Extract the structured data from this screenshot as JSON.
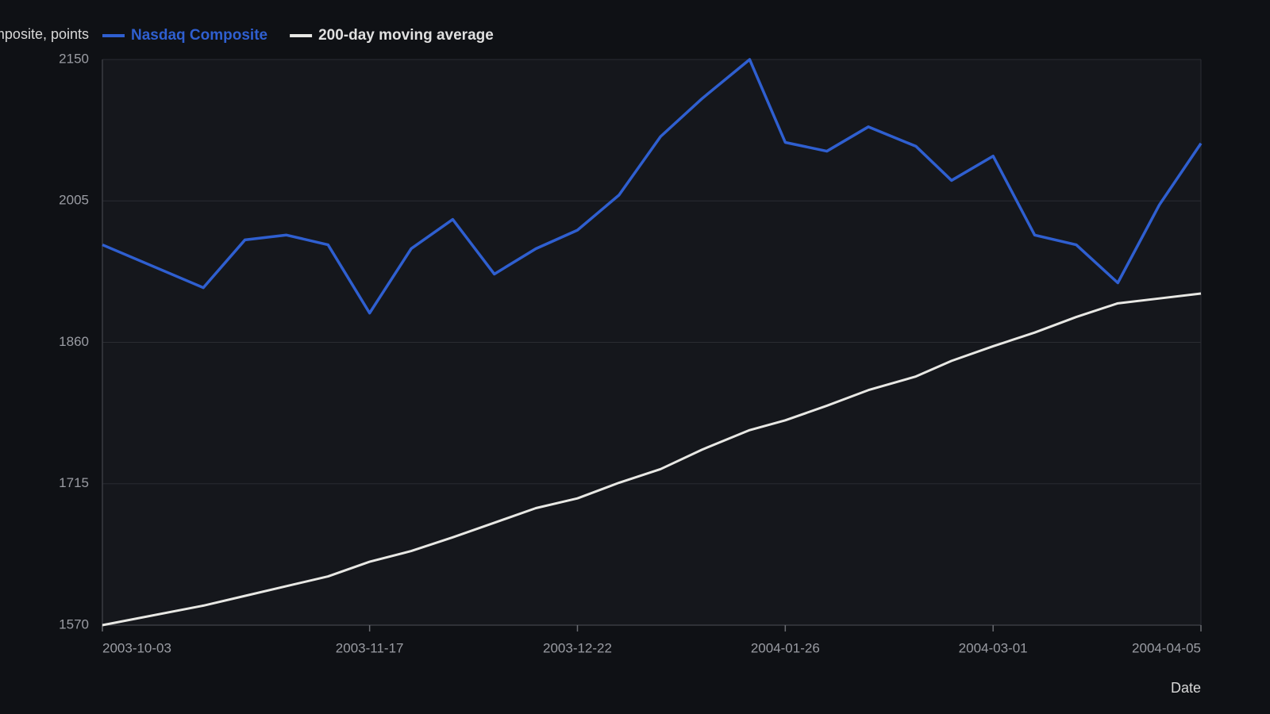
{
  "chart_data": {
    "type": "line",
    "y_label": "Nasdaq Composite, points",
    "x_label": "Date",
    "x": [
      "2003-10-03",
      "2003-10-20",
      "2003-10-27",
      "2003-11-03",
      "2003-11-10",
      "2003-11-17",
      "2003-11-24",
      "2003-12-01",
      "2003-12-08",
      "2003-12-15",
      "2003-12-22",
      "2003-12-29",
      "2004-01-05",
      "2004-01-12",
      "2004-01-20",
      "2004-01-26",
      "2004-02-02",
      "2004-02-09",
      "2004-02-17",
      "2004-02-23",
      "2004-03-01",
      "2004-03-08",
      "2004-03-15",
      "2004-03-22",
      "2004-03-29",
      "2004-04-05"
    ],
    "series": [
      {
        "name": "Nasdaq Composite",
        "color": "#2f5fd0",
        "values": [
          1960,
          1916,
          1965,
          1970,
          1960,
          1890,
          1956,
          1986,
          1930,
          1956,
          1975,
          2011,
          2071,
          2110,
          2150,
          2065,
          2056,
          2081,
          2061,
          2026,
          2051,
          1970,
          1960,
          1921,
          2001,
          2064
        ]
      },
      {
        "name": "200-day moving average",
        "color": "#e8e8e4",
        "values": [
          1570,
          1590,
          1600,
          1610,
          1620,
          1635,
          1646,
          1660,
          1675,
          1690,
          1700,
          1716,
          1730,
          1750,
          1770,
          1780,
          1795,
          1811,
          1825,
          1841,
          1856,
          1870,
          1886,
          1900,
          1905,
          1910
        ]
      }
    ],
    "xlim": [
      "2003-10-03",
      "2004-04-05"
    ],
    "xticks": [
      "2003-10-03",
      "2003-11-17",
      "2003-12-22",
      "2004-01-26",
      "2004-03-01",
      "2004-04-05"
    ],
    "ylim": [
      1570,
      2150
    ],
    "yticks": [
      1570,
      1715,
      1860,
      2005,
      2150
    ],
    "grid": true,
    "legend": "top"
  }
}
